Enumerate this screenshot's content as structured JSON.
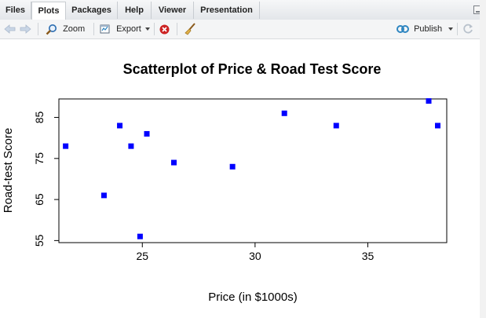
{
  "tabs": [
    {
      "label": "Files",
      "active": false
    },
    {
      "label": "Plots",
      "active": true
    },
    {
      "label": "Packages",
      "active": false
    },
    {
      "label": "Help",
      "active": false
    },
    {
      "label": "Viewer",
      "active": false
    },
    {
      "label": "Presentation",
      "active": false
    }
  ],
  "toolbar": {
    "zoom_label": "Zoom",
    "export_label": "Export",
    "publish_label": "Publish"
  },
  "icons": {
    "back": "arrow-left-icon",
    "forward": "arrow-right-icon",
    "zoom": "zoom-icon",
    "export": "export-icon",
    "remove": "remove-plot-icon",
    "clear": "broom-icon",
    "publish": "publish-icon",
    "refresh": "refresh-icon"
  },
  "colors": {
    "point": "#0000ff",
    "remove": "#cc2222",
    "publish": "#2e86c1"
  },
  "chart_data": {
    "type": "scatter",
    "title": "Scatterplot of Price & Road Test Score",
    "xlabel": "Price (in $1000s)",
    "ylabel": "Road-test Score",
    "xlim": [
      21.3,
      38.5
    ],
    "ylim": [
      54.5,
      89.5
    ],
    "x_ticks": [
      25,
      30,
      35
    ],
    "y_ticks": [
      55,
      65,
      75,
      85
    ],
    "grid": false,
    "legend": "none",
    "marker": "filled-square",
    "points": [
      {
        "x": 21.6,
        "y": 78
      },
      {
        "x": 23.3,
        "y": 66
      },
      {
        "x": 24.0,
        "y": 83
      },
      {
        "x": 24.5,
        "y": 78
      },
      {
        "x": 24.9,
        "y": 56
      },
      {
        "x": 25.2,
        "y": 81
      },
      {
        "x": 26.4,
        "y": 74
      },
      {
        "x": 29.0,
        "y": 73
      },
      {
        "x": 31.3,
        "y": 86
      },
      {
        "x": 33.6,
        "y": 83
      },
      {
        "x": 37.7,
        "y": 89
      },
      {
        "x": 38.1,
        "y": 83
      }
    ]
  }
}
